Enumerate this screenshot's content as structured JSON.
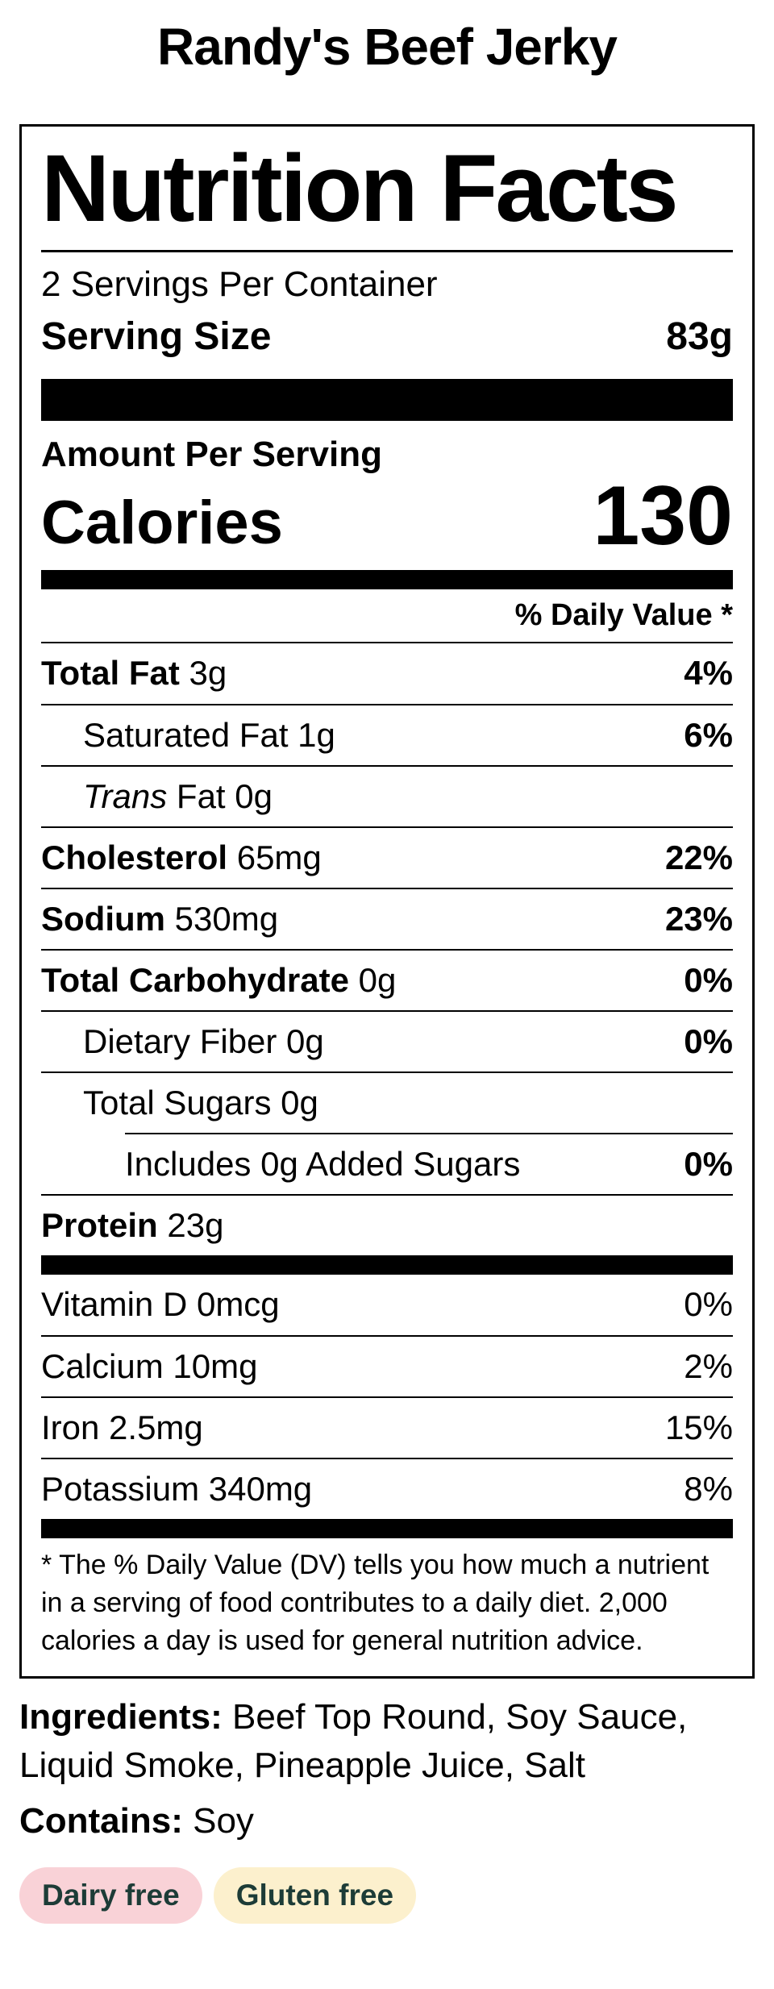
{
  "page": {
    "title": "Randy's Beef Jerky"
  },
  "label": {
    "heading": "Nutrition Facts",
    "servings_per_container": "2 Servings Per Container",
    "serving_size_label": "Serving Size",
    "serving_size_value": "83g",
    "amount_per_serving": "Amount Per Serving",
    "calories_label": "Calories",
    "calories_value": "130",
    "daily_value_header": "% Daily Value *",
    "nutrients": [
      {
        "segments": [
          {
            "text": "Total Fat",
            "bold": true
          },
          {
            "text": " 3g"
          }
        ],
        "dv": "4%",
        "dv_bold": true,
        "indent": 0
      },
      {
        "segments": [
          {
            "text": "Saturated Fat 1g"
          }
        ],
        "dv": "6%",
        "dv_bold": true,
        "indent": 1
      },
      {
        "segments": [
          {
            "text": "Trans",
            "italic": true
          },
          {
            "text": " Fat 0g"
          }
        ],
        "dv": "",
        "dv_bold": false,
        "indent": 1
      },
      {
        "segments": [
          {
            "text": "Cholesterol",
            "bold": true
          },
          {
            "text": " 65mg"
          }
        ],
        "dv": "22%",
        "dv_bold": true,
        "indent": 0
      },
      {
        "segments": [
          {
            "text": "Sodium",
            "bold": true
          },
          {
            "text": " 530mg"
          }
        ],
        "dv": "23%",
        "dv_bold": true,
        "indent": 0
      },
      {
        "segments": [
          {
            "text": "Total Carbohydrate",
            "bold": true
          },
          {
            "text": " 0g"
          }
        ],
        "dv": "0%",
        "dv_bold": true,
        "indent": 0
      },
      {
        "segments": [
          {
            "text": "Dietary Fiber 0g"
          }
        ],
        "dv": "0%",
        "dv_bold": true,
        "indent": 1
      },
      {
        "segments": [
          {
            "text": "Total Sugars 0g"
          }
        ],
        "dv": "",
        "dv_bold": false,
        "indent": 1
      },
      {
        "segments": [
          {
            "text": "Includes 0g Added Sugars"
          }
        ],
        "dv": "0%",
        "dv_bold": true,
        "indent": 2,
        "rule_indented": true
      },
      {
        "segments": [
          {
            "text": "Protein",
            "bold": true
          },
          {
            "text": " 23g"
          }
        ],
        "dv": "",
        "dv_bold": false,
        "indent": 0
      }
    ],
    "vitamins": [
      {
        "segments": [
          {
            "text": "Vitamin D 0mcg"
          }
        ],
        "dv": "0%",
        "dv_bold": false,
        "indent": 0
      },
      {
        "segments": [
          {
            "text": "Calcium 10mg"
          }
        ],
        "dv": "2%",
        "dv_bold": false,
        "indent": 0
      },
      {
        "segments": [
          {
            "text": "Iron 2.5mg"
          }
        ],
        "dv": "15%",
        "dv_bold": false,
        "indent": 0
      },
      {
        "segments": [
          {
            "text": "Potassium 340mg"
          }
        ],
        "dv": "8%",
        "dv_bold": false,
        "indent": 0
      }
    ],
    "footnote": "* The % Daily Value (DV) tells you how much a nutrient in a serving of food contributes to a daily diet. 2,000 calories a day is used for general nutrition advice."
  },
  "details": {
    "ingredients_label": "Ingredients:",
    "ingredients_value": " Beef Top Round, Soy Sauce, Liquid Smoke, Pineapple Juice, Salt",
    "contains_label": "Contains:",
    "contains_value": " Soy"
  },
  "badges": [
    {
      "label": "Dairy free",
      "bg": "#f9d2d7",
      "fg": "#1d3c37"
    },
    {
      "label": "Gluten free",
      "bg": "#fcf0cd",
      "fg": "#1d3c37"
    }
  ],
  "colors": {
    "text": "#000000",
    "background": "#ffffff",
    "badge_text": "#1d3c37",
    "badge_dairy_bg": "#f9d2d7",
    "badge_gluten_bg": "#fcf0cd"
  }
}
